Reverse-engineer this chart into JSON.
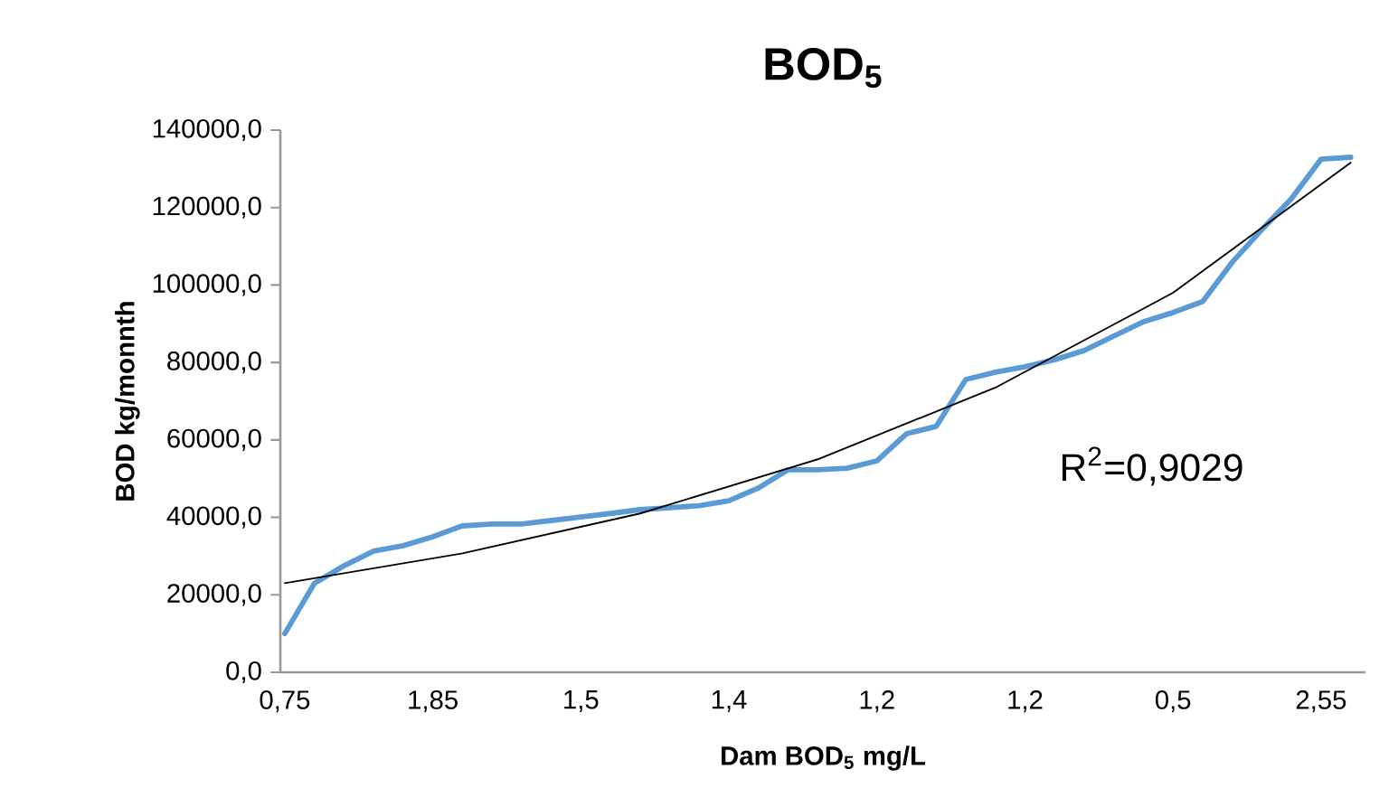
{
  "chart_data": {
    "type": "line",
    "title": "**BOD$_{5}$**",
    "xlabel": "**Dam BOD$_{5}$ mg/L**",
    "ylabel": "**BOD kg/monnth**",
    "categories": [
      "0,75",
      null,
      null,
      null,
      null,
      "1,85",
      null,
      null,
      null,
      null,
      "1,5",
      null,
      null,
      null,
      null,
      "1,4",
      null,
      null,
      null,
      null,
      "1,2",
      null,
      null,
      null,
      null,
      "1,2",
      null,
      null,
      null,
      null,
      "0,5",
      null,
      null,
      null,
      null,
      "2,55",
      null
    ],
    "series": [
      {
        "color": "#5b9bd5",
        "values": [
          10000,
          23000,
          27500,
          31300,
          32700,
          35000,
          37800,
          38300,
          38300,
          39200,
          40100,
          41000,
          42000,
          42500,
          43000,
          44300,
          47600,
          52300,
          52300,
          52700,
          54600,
          61600,
          63500,
          75600,
          77500,
          78900,
          80700,
          83100,
          86800,
          90500,
          92900,
          95700,
          105900,
          114300,
          122300,
          132500,
          133000
        ]
      },
      {
        "color": "#000000",
        "values": [
          23000,
          null,
          null,
          null,
          null,
          null,
          30700,
          null,
          null,
          null,
          null,
          null,
          41000,
          null,
          null,
          null,
          null,
          null,
          55000,
          null,
          null,
          null,
          null,
          null,
          73500,
          null,
          null,
          null,
          null,
          null,
          98000,
          null,
          null,
          null,
          null,
          null,
          131600
        ]
      }
    ],
    "ylim": [
      0,
      140000
    ],
    "yticks": [
      {
        "value": 0,
        "label": "0,0"
      },
      {
        "value": 20000,
        "label": "20000,0"
      },
      {
        "value": 40000,
        "label": "40000,0"
      },
      {
        "value": 60000,
        "label": "60000,0"
      },
      {
        "value": 80000,
        "label": "80000,0"
      },
      {
        "value": 100000,
        "label": "100000,0"
      },
      {
        "value": 120000,
        "label": "120000,0"
      },
      {
        "value": 140000,
        "label": "140000,0"
      }
    ],
    "grid": false,
    "marker": "none",
    "annotations": [
      "R$^{2}$=0,9029"
    ]
  }
}
